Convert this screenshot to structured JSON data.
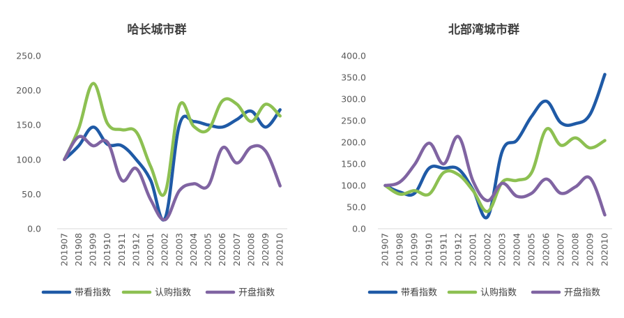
{
  "chart_data": [
    {
      "type": "line",
      "title": "哈长城市群",
      "xlabel": "",
      "ylabel": "",
      "ylim": [
        0,
        250
      ],
      "ytick_labels": [
        "0.0",
        "50.0",
        "100.0",
        "150.0",
        "200.0",
        "250.0"
      ],
      "grid": false,
      "legend": "bottom",
      "categories": [
        "201907",
        "201908",
        "201909",
        "201910",
        "201911",
        "201912",
        "202001",
        "202002",
        "202003",
        "202004",
        "202005",
        "202006",
        "202007",
        "202008",
        "202009",
        "202010"
      ],
      "series": [
        {
          "name": "带看指数",
          "color": "#1f5aa6",
          "values": [
            100,
            120,
            147,
            122,
            120,
            100,
            70,
            15,
            150,
            155,
            150,
            147,
            158,
            170,
            147,
            172
          ]
        },
        {
          "name": "认购指数",
          "color": "#8dc052",
          "values": [
            100,
            145,
            210,
            152,
            143,
            140,
            90,
            52,
            178,
            148,
            143,
            185,
            180,
            155,
            180,
            163
          ]
        },
        {
          "name": "开盘指数",
          "color": "#8064a2",
          "values": [
            100,
            133,
            120,
            125,
            70,
            87,
            42,
            13,
            55,
            65,
            62,
            117,
            95,
            118,
            112,
            62
          ]
        }
      ]
    },
    {
      "type": "line",
      "title": "北部湾城市群",
      "xlabel": "",
      "ylabel": "",
      "ylim": [
        0,
        400
      ],
      "ytick_labels": [
        "0.0",
        "50.0",
        "100.0",
        "150.0",
        "200.0",
        "250.0",
        "300.0",
        "350.0",
        "400.0"
      ],
      "grid": false,
      "legend": "bottom",
      "categories": [
        "201907",
        "201908",
        "201909",
        "201910",
        "201911",
        "201912",
        "202001",
        "202002",
        "202003",
        "202004",
        "202005",
        "202006",
        "202007",
        "202008",
        "202009",
        "202010"
      ],
      "series": [
        {
          "name": "带看指数",
          "color": "#1f5aa6",
          "values": [
            100,
            85,
            82,
            140,
            140,
            138,
            90,
            28,
            180,
            205,
            260,
            295,
            245,
            243,
            265,
            357
          ]
        },
        {
          "name": "认购指数",
          "color": "#8dc052",
          "values": [
            100,
            80,
            88,
            80,
            130,
            125,
            88,
            40,
            108,
            112,
            130,
            230,
            193,
            210,
            187,
            204
          ]
        },
        {
          "name": "开盘指数",
          "color": "#8064a2",
          "values": [
            100,
            108,
            148,
            198,
            150,
            213,
            110,
            65,
            105,
            75,
            82,
            115,
            82,
            97,
            117,
            32
          ]
        }
      ]
    }
  ]
}
